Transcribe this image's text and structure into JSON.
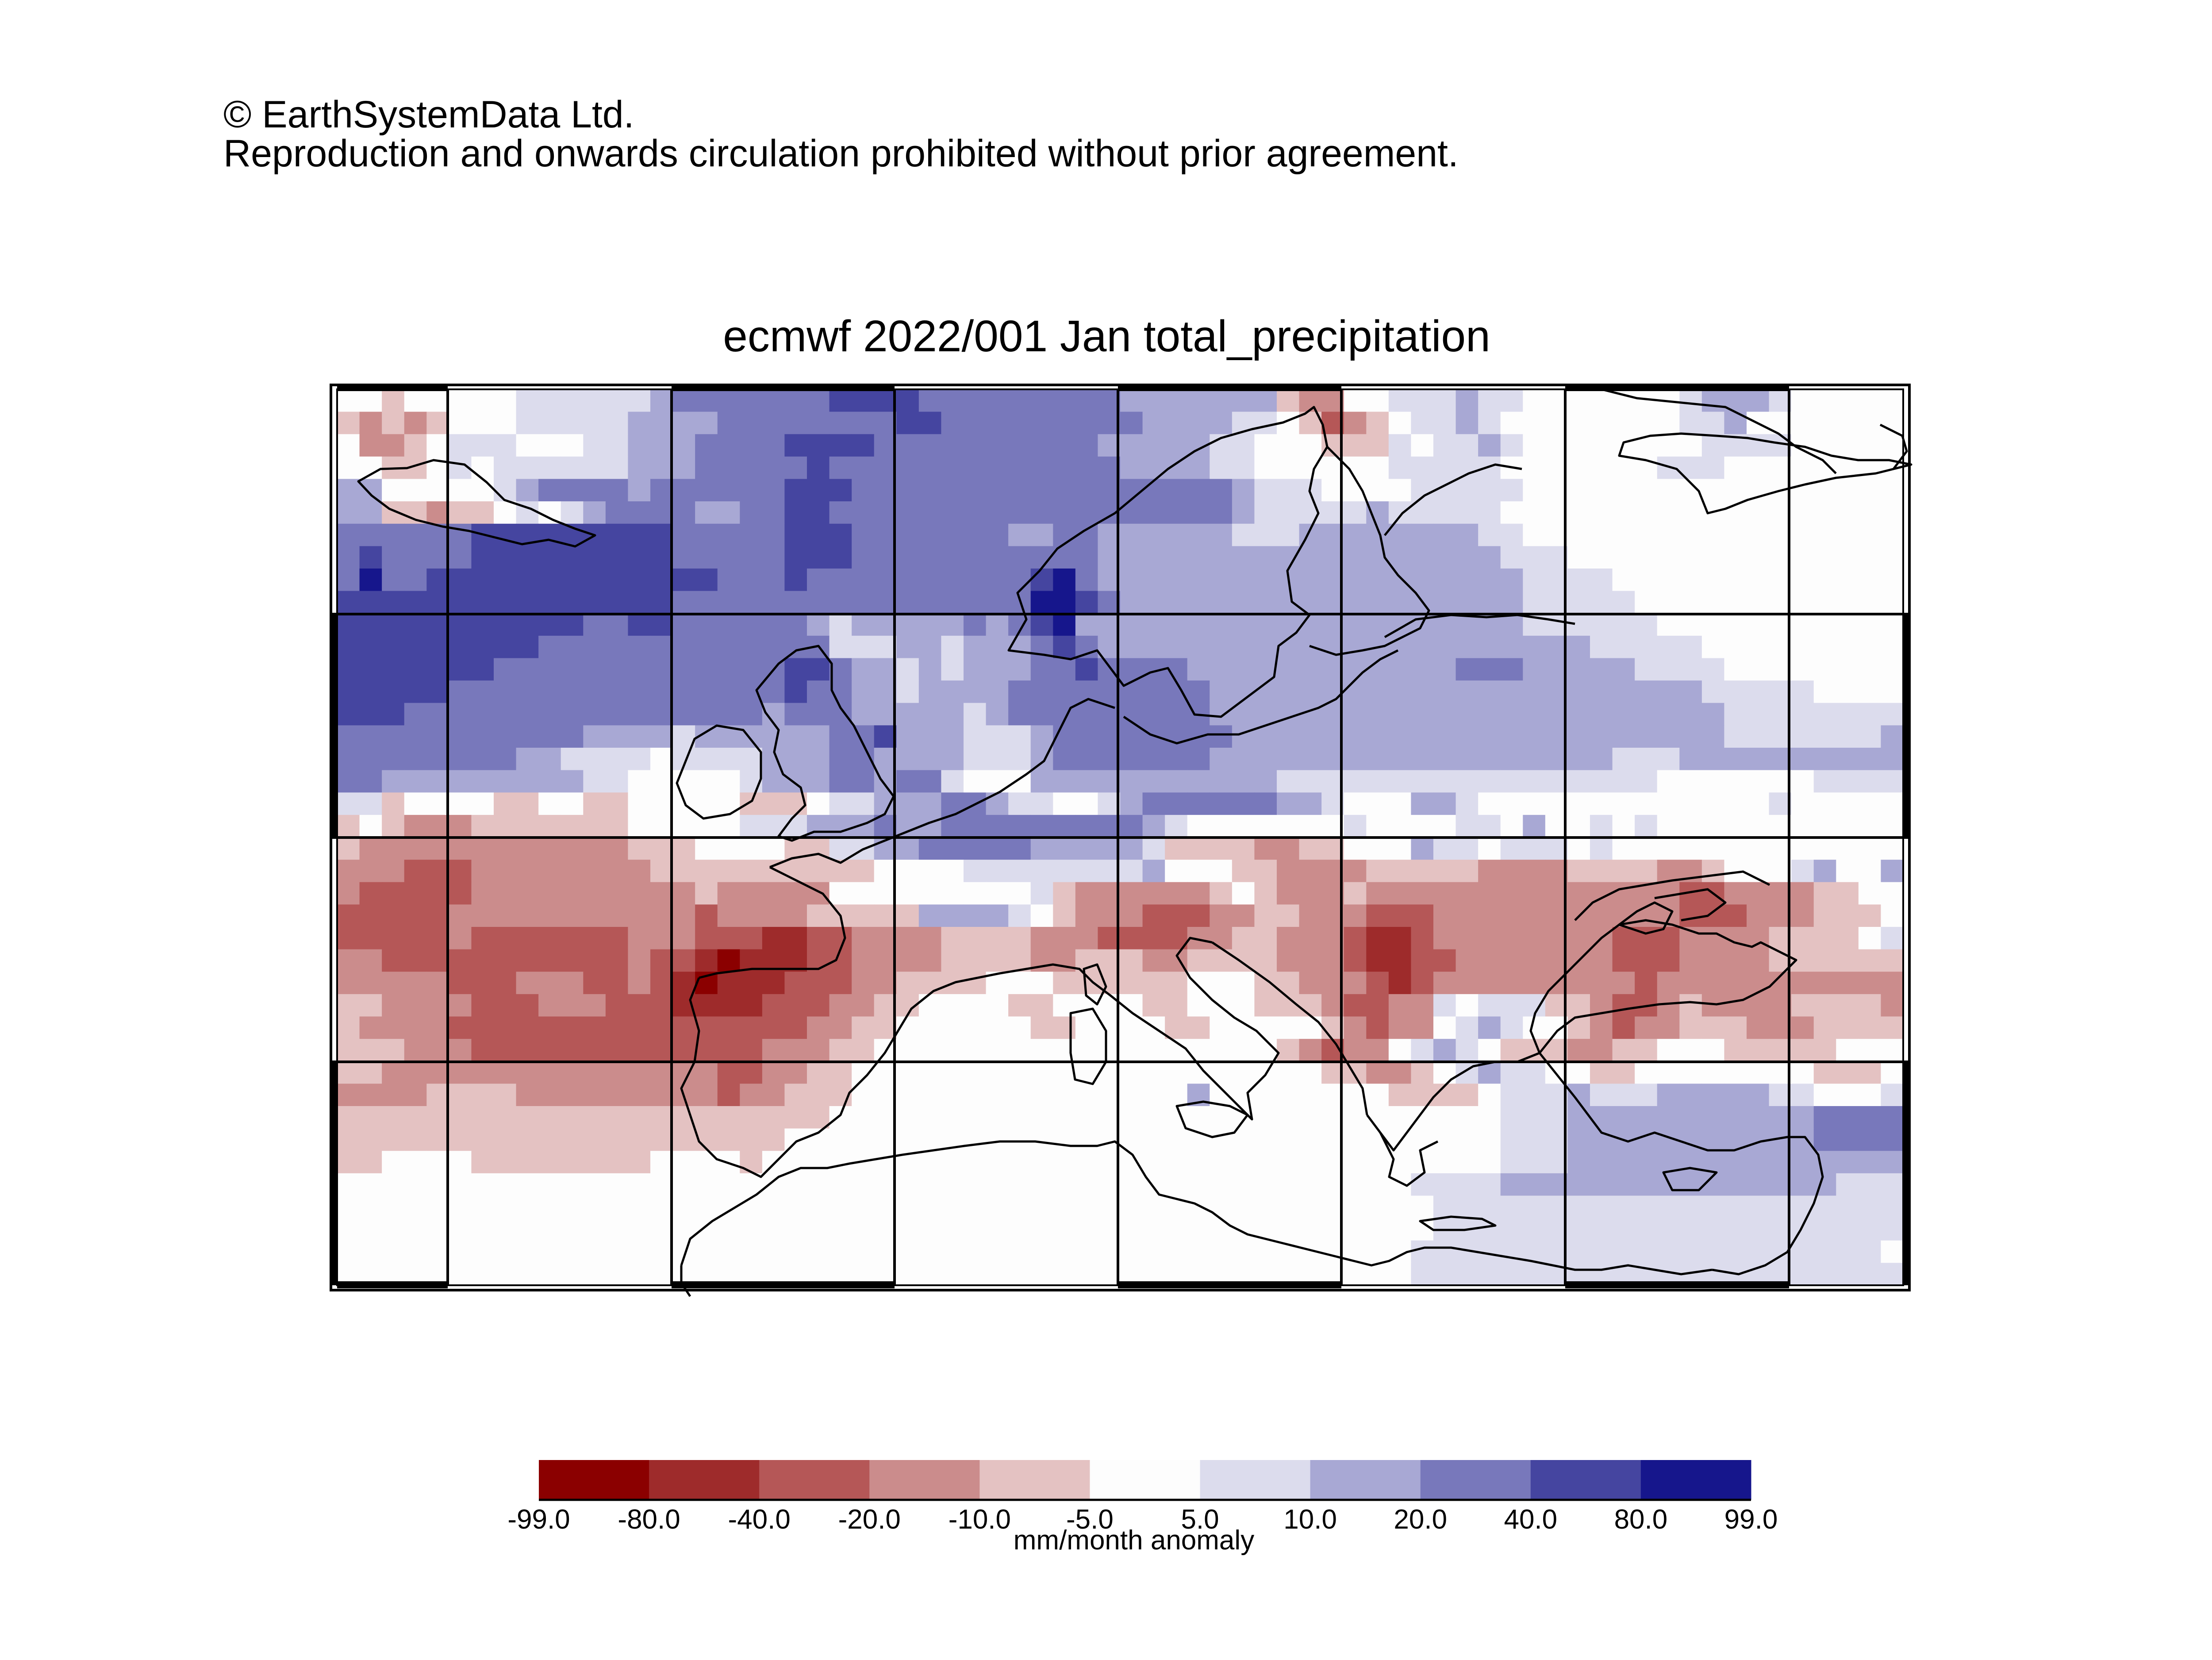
{
  "copyright": {
    "line1": "© EarthSystemData Ltd.",
    "line2": "Reproduction and onwards circulation prohibited without prior agreement."
  },
  "map": {
    "title": "ecmwf 2022/001 Jan total_precipitation",
    "variable": "total_precipitation",
    "region": "Europe and Mediterranean",
    "grid_lines": true
  },
  "colorbar": {
    "unit_label": "mm/month anomaly",
    "ticks": [
      "-99.0",
      "-80.0",
      "-40.0",
      "-20.0",
      "-10.0",
      "-5.0",
      "5.0",
      "10.0",
      "20.0",
      "40.0",
      "80.0",
      "99.0"
    ],
    "colors": [
      "#8b0000",
      "#9e2b2b",
      "#b55757",
      "#cb8c8c",
      "#e4c2c2",
      "#fdfdfd",
      "#dcdced",
      "#a8a8d4",
      "#7878bb",
      "#4545a0",
      "#16168c"
    ]
  },
  "anomaly_field": {
    "grid_cols": 70,
    "grid_rows": 40,
    "levels": [
      "-5",
      "-4",
      "-3",
      "-2",
      "-1",
      "0",
      "1",
      "2",
      "3",
      "4",
      "5"
    ],
    "rows": [
      "00-1000001111112333333344443333333332222222-1-2-200111211000000012221000",
      "-1-2-1-2-100011111222233333333443333333332222110-1-3-2-10112100000000112000",
      "0-2-2-10111000112223333444433333333332222211000-1-1-1101121000000001111000",
      "00-1-1010111111222333334333333333333322221100000011111000000011100000",
      "22000001233332333333444333333333333333332111000011111000000000000000",
      "22-1-1-2-1-1010123333223344333333333333333333211111211111000000000000000",
      "33333344444444433333444333333322332222221112222222211000000000000000",
      "34333344444444433333444333333333332222222222222222221110000000000000",
      "35334444444444444333433333333334532222222222222222222111100000000000",
      "4444444444444443333333333333333554322222222222222222211111000000000000",
      "4444444444433443333332122222323452222222222222222222211111100000000000",
      "4444444443333333333333111221222343222222222222222222222211111000000000",
      "4444444333333333333344322121222334333322222222222233322222111100000000",
      "4444433333333333333343322122223333333332222222222222222222222111110000",
      "44433333333333333332333222221233333333322222222222222222222222111111110",
      "3333333333322221222222334222111233333333222222222222222222222211111112",
      "3333333322111101111222332222111233333332222222222222222221112222222222",
      "3322222222211000001222332331000222222222221111111111111111100000001111",
      "11-10000-1-100-1-100000-1-1-10112223321100123333332210002210000000000000100000",
      "-10-1-2-2-2-1-1-1-1-1-1-10000011122232233333333321000000010000110200101",
      "-1-2-2-2-2-2-2-2-2-2-2-2-2-1-1-10000-1-1112233333222221-1-1-1-1-2-2-1-1000211011101",
      "-2-2-2-3-3-3-2-2-2-2-2-2-2-2-1-1-1-1-1-1-1-1-1-10000111111112000-1-1-2-2-2-2-1-1-1-1-1-2-2-2-2-1-1-1-1-2-2-10001200211",
      "-2-3-3-3-3-3-2-2-2-2-2-2-2-2-2-2-1-2-2-2-2-20000000001-1-2-2-2-2-2-2-10-1-2-2-2-1-2-2-2-2-2-2-2-2-2-2-2-2-2-2-3-3-2-2-2-2-1-1000033331",
      "-3-3-3-3-3-2-2-2-2-2-2-2-2-2-2-2-3-2-2-2-2-1-1-1-1-1222210-1-2-2-2-3-3-3-2-2-1-1-2-2-2-3-3-3-2-2-2-2-2-2-2-2-2-2-2-3-3-3-2-2-2-1-1-1003334",
      "-3-3-3-3-3-2-3-3-3-3-3-3-3-2-2-2-3-3-3-4-4-3-3-2-2-2-2-1-1-1-1-2-2-2-3-3-3-3-2-2-1-1-2-2-2-3-4-4-3-2-2-2-2-2-2-2-2-3-3-3-2-2-2-2-1-1-1-1013333",
      "-2-2-3-3-3-3-3-3-3-3-3-3-3-2-3-3-4-5-4-4-4-3-3-2-2-2-2-1-1-1-1-2-2-1-1-1-2-2-1-1-1-1-2-2-2-3-4-4-3-3-2-2-2-2-2-2-2-3-3-3-2-2-2-2-1-1-1-1-1-1-1-1",
      "-2-2-2-2-2-3-3-3-2-2-2-3-3-2-3-4-5-4-4-4-3-3-3-2-2-1-1-1-1000-1-1-1-1-1-1000-1-1-2-2-2-3-4-3-2-2-2-2-2-2-2-2-2-3-2-2-2-2-2-2-2-2-2-2-2-2-2-2",
      "-1-1-2-2-2-2-3-3-3-2-2-2-3-3-3-4-4-4-4-3-3-3-2-2-1-10000-1-10000-1-1000-1-1-1-2-3-3-2-210111-1-1-2-3-3-2-1-2-2-2-2-1-1-1-1-2-2-3-3-3",
      "-1-2-2-2-2-3-3-3-3-3-3-3-3-3-3-3-3-3-3-3-3-2-2-1-1000000-1-10000-1-100000-1-2-3-2-2012100-1-2-3-2-2-1-1-1-2-2-2-1-1-1-1-1-2-2-2-2-3-3",
      "-1-1-1-2-2-2-3-3-3-3-3-3-3-3-3-3-3-3-3-2-2-2-1-1000000000000000000-1-2-3-2-201210-1-1-1-2-2-1-1000-1-1-1-1-10000-1-1-1-1-2-2",
      "-1-1-2-2-2-2-2-2-2-2-2-2-2-2-2-2-2-3-3-2-2-1-1000000000000000000000-1-1-2-2-10121100-1-100000000-1-1-10000000-1",
      "-2-2-2-2-1-1-1-1-2-2-2-2-2-2-2-2-2-3-2-2-1-1-1000000000000000200000000-1-1-1-101112111222221100012222222",
      "-1-1-1-1-1-1-1-1-1-1-1-1-1-1-1-1-1-1-1-1-1-100000000000000000000000000000011122222222222333322222223",
      "-1-1-1-1-1-1-1-1-1-1-1-1-1-1-1-1-1-1-1-10000000000000000000000000000000011122222222222333322222222",
      "-1-10000-1-1-1-1-1-1-1-10000-1000000000000000000000000000000000111222222222222222223222222",
      "00000000000000000000000000000000000000000000000011112222222222222221111222",
      "0000000000000000000000000000000000000000000000000111111111111111111111111",
      "0000000000000000000000000000000000000000000000000111111111111111111111111",
      "0000000000000000000000000000000000000000000000001111111111111111111110001",
      "000000000000000000000000000000000000000000000000111111111111111111111111"
    ]
  }
}
